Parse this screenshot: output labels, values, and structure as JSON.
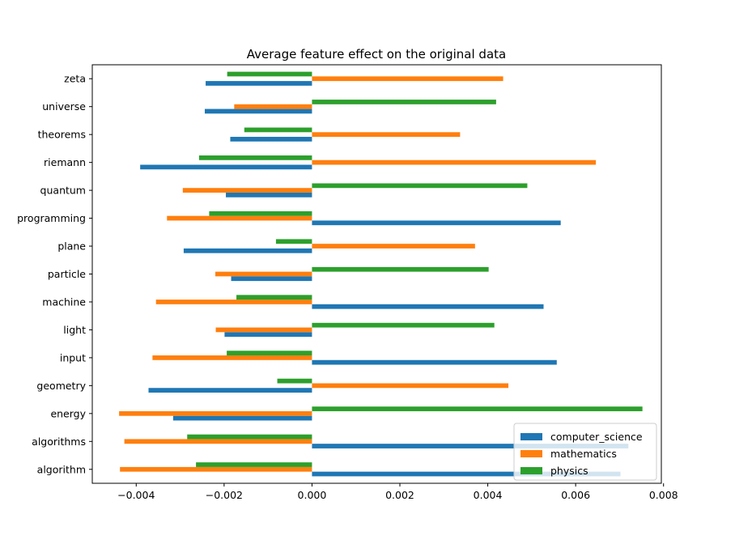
{
  "chart_data": {
    "type": "bar",
    "orientation": "horizontal",
    "title": "Average feature effect on the original data",
    "xlabel": "",
    "ylabel": "",
    "xlim": [
      -0.005,
      0.00795
    ],
    "xticks": [
      -0.004,
      -0.002,
      0.0,
      0.002,
      0.004,
      0.006,
      0.008
    ],
    "xtick_labels": [
      "−0.004",
      "−0.002",
      "0.000",
      "0.002",
      "0.004",
      "0.006",
      "0.008"
    ],
    "categories": [
      "algorithm",
      "algorithms",
      "energy",
      "geometry",
      "input",
      "light",
      "machine",
      "particle",
      "plane",
      "programming",
      "quantum",
      "riemann",
      "theorems",
      "universe",
      "zeta"
    ],
    "series": [
      {
        "name": "computer_science",
        "color": "#1f77b4",
        "values": [
          0.00702,
          0.0072,
          -0.00316,
          -0.00372,
          0.00557,
          -0.00199,
          0.00527,
          -0.00184,
          -0.00292,
          0.00566,
          -0.00196,
          -0.00391,
          -0.00186,
          -0.00244,
          -0.00242
        ]
      },
      {
        "name": "mathematics",
        "color": "#ff7f0e",
        "values": [
          -0.00437,
          -0.00427,
          -0.00439,
          0.00447,
          -0.00363,
          -0.00219,
          -0.00355,
          -0.0022,
          0.00371,
          -0.0033,
          -0.00294,
          0.00646,
          0.00337,
          -0.00177,
          0.00435
        ]
      },
      {
        "name": "physics",
        "color": "#2ca02c",
        "values": [
          -0.00264,
          -0.00284,
          0.00752,
          -0.00079,
          -0.00194,
          0.00415,
          -0.00172,
          0.00402,
          -0.00082,
          -0.00234,
          0.0049,
          -0.00257,
          -0.00154,
          0.00419,
          -0.00193
        ]
      }
    ],
    "grid": false,
    "legend_position": "lower right"
  }
}
